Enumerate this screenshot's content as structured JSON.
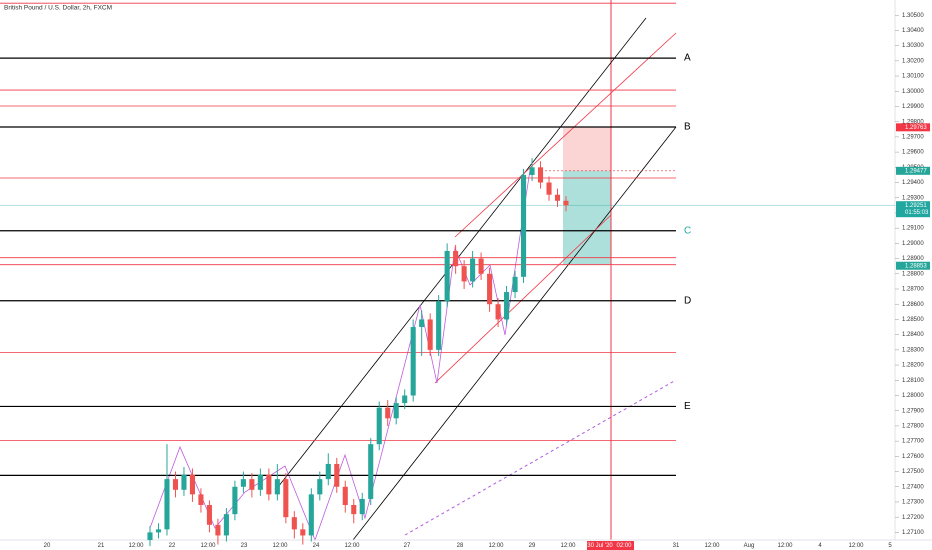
{
  "chart_data": {
    "type": "candlestick",
    "title": "British Pound / U.S. Dollar, 2h, FXCM",
    "up_color": "#26a69a",
    "down_color": "#ef5350",
    "ylim": [
      1.2705,
      1.306
    ],
    "yticks": [
      {
        "value": 1.305,
        "label": "1.30500"
      },
      {
        "value": 1.304,
        "label": "1.30400"
      },
      {
        "value": 1.303,
        "label": "1.30300"
      },
      {
        "value": 1.302,
        "label": "1.30200"
      },
      {
        "value": 1.301,
        "label": "1.30100"
      },
      {
        "value": 1.3,
        "label": "1.30000"
      },
      {
        "value": 1.299,
        "label": "1.29900"
      },
      {
        "value": 1.298,
        "label": "1.29800"
      },
      {
        "value": 1.297,
        "label": "1.29700"
      },
      {
        "value": 1.296,
        "label": "1.29600"
      },
      {
        "value": 1.295,
        "label": "1.29500"
      },
      {
        "value": 1.294,
        "label": "1.29400"
      },
      {
        "value": 1.293,
        "label": "1.29300"
      },
      {
        "value": 1.292,
        "label": "1.29200"
      },
      {
        "value": 1.291,
        "label": "1.29100"
      },
      {
        "value": 1.29,
        "label": "1.29000"
      },
      {
        "value": 1.289,
        "label": "1.28900"
      },
      {
        "value": 1.288,
        "label": "1.28800"
      },
      {
        "value": 1.287,
        "label": "1.28700"
      },
      {
        "value": 1.286,
        "label": "1.28600"
      },
      {
        "value": 1.285,
        "label": "1.28500"
      },
      {
        "value": 1.284,
        "label": "1.28400"
      },
      {
        "value": 1.283,
        "label": "1.28300"
      },
      {
        "value": 1.282,
        "label": "1.28200"
      },
      {
        "value": 1.281,
        "label": "1.28100"
      },
      {
        "value": 1.28,
        "label": "1.28000"
      },
      {
        "value": 1.279,
        "label": "1.27900"
      },
      {
        "value": 1.278,
        "label": "1.27800"
      },
      {
        "value": 1.277,
        "label": "1.27700"
      },
      {
        "value": 1.276,
        "label": "1.27600"
      },
      {
        "value": 1.275,
        "label": "1.27500"
      },
      {
        "value": 1.274,
        "label": "1.27400"
      },
      {
        "value": 1.273,
        "label": "1.27300"
      },
      {
        "value": 1.272,
        "label": "1.27200"
      },
      {
        "value": 1.271,
        "label": "1.27100"
      }
    ],
    "x_labels": [
      "20",
      "21",
      "12:00",
      "22",
      "12:00",
      "23",
      "12:00",
      "24",
      "12:00",
      "27",
      "28",
      "12:00",
      "29",
      "12:00",
      "30 Jul '20",
      "02:00",
      "31",
      "12:00",
      "Aug",
      "12:00",
      "4",
      "12:00",
      "5"
    ],
    "open": [
      1.2705,
      1.271,
      1.2712,
      1.2745,
      1.2738,
      1.2748,
      1.2735,
      1.2728,
      1.2715,
      1.2708,
      1.2722,
      1.274,
      1.2745,
      1.2738,
      1.2748,
      1.2735,
      1.2745,
      1.272,
      1.2712,
      1.2708,
      1.2735,
      1.2745,
      1.2755,
      1.274,
      1.2728,
      1.2722,
      1.2732,
      1.2768,
      1.2792,
      1.2785,
      1.2795,
      1.28,
      1.2845,
      1.285,
      1.283,
      1.2862,
      1.2895,
      1.2885,
      1.2875,
      1.289,
      1.288,
      1.286,
      1.285,
      1.2868,
      1.2878,
      1.2945,
      1.295,
      1.294,
      1.2932,
      1.2928
    ],
    "high": [
      1.2714,
      1.2716,
      1.2768,
      1.275,
      1.2753,
      1.2752,
      1.2739,
      1.2731,
      1.2719,
      1.2726,
      1.2744,
      1.275,
      1.2749,
      1.2752,
      1.2752,
      1.2755,
      1.2749,
      1.2724,
      1.2716,
      1.2739,
      1.275,
      1.2762,
      1.2759,
      1.2744,
      1.2732,
      1.2736,
      1.2772,
      1.2796,
      1.2797,
      1.2799,
      1.2804,
      1.285,
      1.2856,
      1.2854,
      1.2866,
      1.29,
      1.2899,
      1.2889,
      1.2895,
      1.2894,
      1.2884,
      1.2864,
      1.2872,
      1.2882,
      1.2949,
      1.2956,
      1.2954,
      1.2944,
      1.2936,
      1.2931
    ],
    "low": [
      1.2701,
      1.2706,
      1.2708,
      1.2733,
      1.2734,
      1.273,
      1.2723,
      1.271,
      1.2702,
      1.2704,
      1.2718,
      1.2736,
      1.2733,
      1.2734,
      1.2731,
      1.2731,
      1.2716,
      1.2706,
      1.2702,
      1.2704,
      1.2731,
      1.2741,
      1.2736,
      1.2723,
      1.2716,
      1.2718,
      1.2728,
      1.2764,
      1.278,
      1.2781,
      1.2791,
      1.2796,
      1.2826,
      1.2826,
      1.2826,
      1.2858,
      1.288,
      1.287,
      1.2871,
      1.2876,
      1.2855,
      1.2845,
      1.2846,
      1.2864,
      1.2874,
      1.2941,
      1.2936,
      1.2928,
      1.2924,
      1.2921
    ],
    "close": [
      1.271,
      1.2712,
      1.2745,
      1.2738,
      1.2748,
      1.2735,
      1.2728,
      1.2715,
      1.2708,
      1.2722,
      1.274,
      1.2745,
      1.2738,
      1.2748,
      1.2735,
      1.2745,
      1.272,
      1.2712,
      1.2708,
      1.2735,
      1.2745,
      1.2755,
      1.274,
      1.2728,
      1.2722,
      1.2732,
      1.2768,
      1.2792,
      1.2785,
      1.2795,
      1.28,
      1.2845,
      1.285,
      1.283,
      1.2862,
      1.2895,
      1.2885,
      1.2875,
      1.289,
      1.288,
      1.286,
      1.285,
      1.2868,
      1.2878,
      1.2945,
      1.295,
      1.294,
      1.2932,
      1.2928,
      1.2925
    ],
    "levels": [
      {
        "value": 1.30218,
        "label": "A",
        "color": "#000000"
      },
      {
        "value": 1.29765,
        "label": "B",
        "color": "#000000"
      },
      {
        "value": 1.29083,
        "label": "C",
        "color": "#000000"
      },
      {
        "value": 1.28623,
        "label": "D",
        "color": "#000000"
      },
      {
        "value": 1.27928,
        "label": "E",
        "color": "#000000"
      },
      {
        "value": 1.27475,
        "color": "#000000"
      },
      {
        "value": 1.30579,
        "color": "#f23645"
      },
      {
        "value": 1.30008,
        "color": "#f23645"
      },
      {
        "value": 1.29903,
        "color": "#f23645"
      },
      {
        "value": 1.2943,
        "color": "#f23645"
      },
      {
        "value": 1.28906,
        "color": "#f23645"
      },
      {
        "value": 1.2886,
        "color": "#f23645"
      },
      {
        "value": 1.28282,
        "color": "#f23645"
      },
      {
        "value": 1.27705,
        "color": "#f23645"
      }
    ],
    "price_tags": [
      {
        "value": 1.29763,
        "label": "1.29763",
        "color": "#f23645"
      },
      {
        "value": 1.29477,
        "label": "1.29477",
        "color": "#26a69a"
      },
      {
        "value": 1.29251,
        "label": "1.29251",
        "color": "#22a7a0",
        "countdown": "01:55:03"
      },
      {
        "value": 1.28853,
        "label": "1.28853",
        "color": "#26a69a"
      }
    ],
    "current_price": 1.29251
  }
}
